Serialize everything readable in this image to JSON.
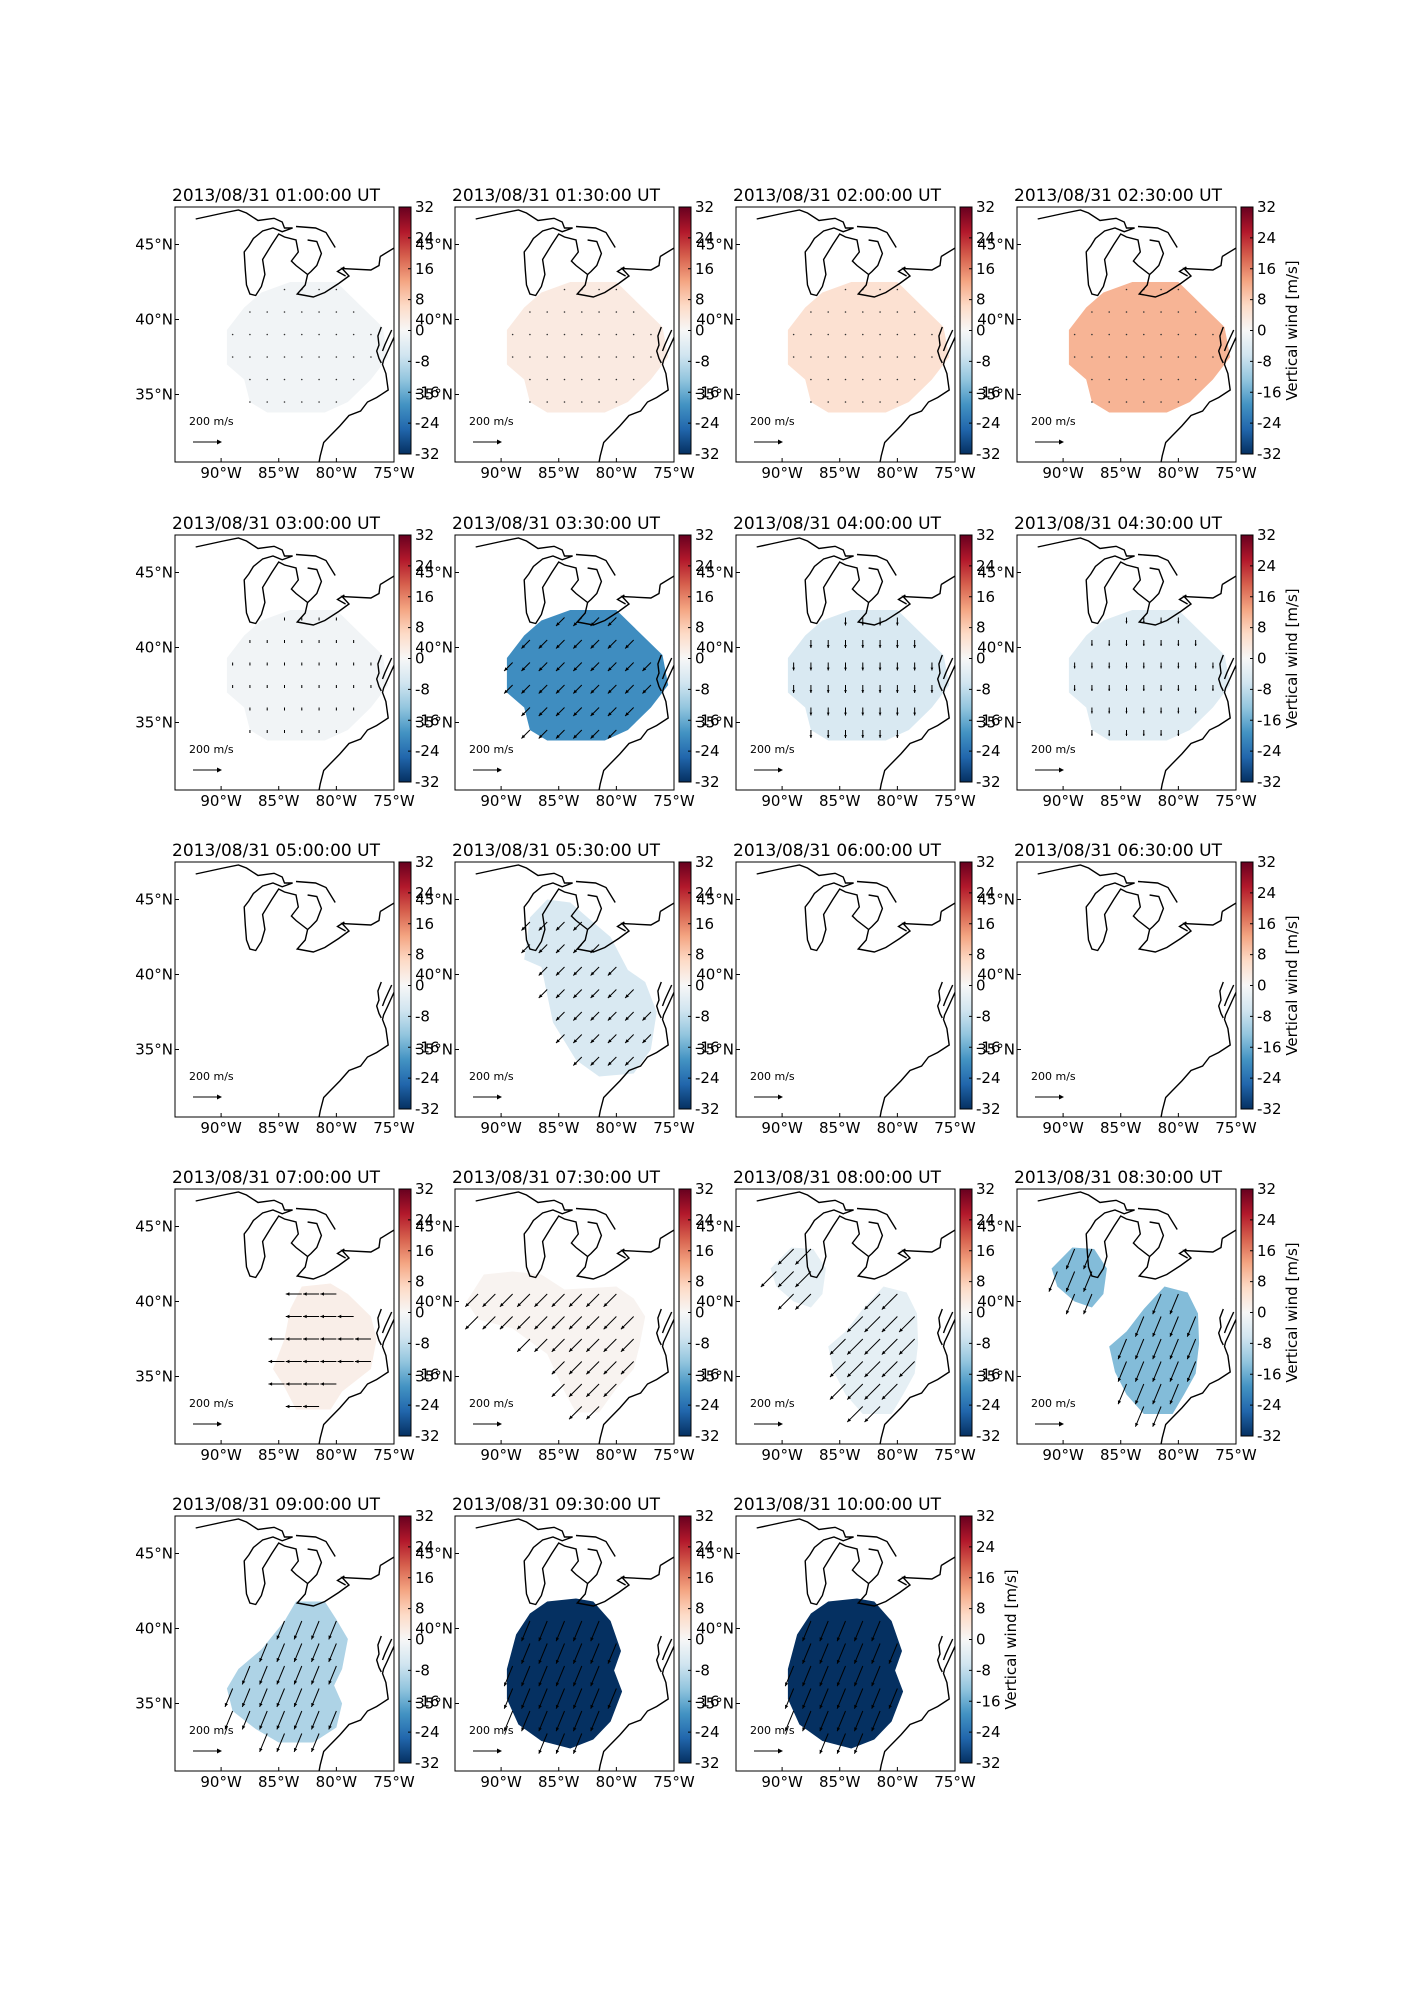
{
  "figure": {
    "longitude_tick_labels": [
      "90°W",
      "85°W",
      "80°W",
      "75°W"
    ],
    "latitude_tick_labels": [
      "45°N",
      "40°N",
      "35°N"
    ],
    "colorbar_tick_labels": [
      "32",
      "24",
      "16",
      "8",
      "0",
      "-8",
      "-16",
      "-24",
      "-32"
    ],
    "colorbar_label": "Vertical wind [m/s]",
    "reference_arrow_label": "200 m/s",
    "colors": {
      "colormap": [
        "#053061",
        "#2166ac",
        "#4393c3",
        "#92c5de",
        "#d1e5f0",
        "#f7f7f7",
        "#fddbc7",
        "#f4a582",
        "#d6604d",
        "#b2182b",
        "#67001f"
      ],
      "coastline": "#000000",
      "text": "#000000"
    }
  },
  "chart_data": [
    {
      "type": "heatmap",
      "title": "2013/08/31 01:00:00 UT",
      "vertical_wind_ms": -1,
      "coverage": "central",
      "arrow_direction": "none",
      "arrow_speed": 0
    },
    {
      "type": "heatmap",
      "title": "2013/08/31 01:30:00 UT",
      "vertical_wind_ms": 3,
      "coverage": "central",
      "arrow_direction": "none",
      "arrow_speed": 0
    },
    {
      "type": "heatmap",
      "title": "2013/08/31 02:00:00 UT",
      "vertical_wind_ms": 5,
      "coverage": "central",
      "arrow_direction": "none",
      "arrow_speed": 0
    },
    {
      "type": "heatmap",
      "title": "2013/08/31 02:30:00 UT",
      "vertical_wind_ms": 11,
      "coverage": "central",
      "arrow_direction": "none",
      "arrow_speed": 0
    },
    {
      "type": "heatmap",
      "title": "2013/08/31 03:00:00 UT",
      "vertical_wind_ms": -1,
      "coverage": "central",
      "arrow_direction": "S",
      "arrow_speed": 15
    },
    {
      "type": "heatmap",
      "title": "2013/08/31 03:30:00 UT",
      "vertical_wind_ms": -20,
      "coverage": "central",
      "arrow_direction": "SW",
      "arrow_speed": 60
    },
    {
      "type": "heatmap",
      "title": "2013/08/31 04:00:00 UT",
      "vertical_wind_ms": -5,
      "coverage": "central",
      "arrow_direction": "S",
      "arrow_speed": 40
    },
    {
      "type": "heatmap",
      "title": "2013/08/31 04:30:00 UT",
      "vertical_wind_ms": -4,
      "coverage": "central",
      "arrow_direction": "S",
      "arrow_speed": 30
    },
    {
      "type": "heatmap",
      "title": "2013/08/31 05:00:00 UT",
      "vertical_wind_ms": 0,
      "coverage": "none",
      "arrow_direction": "none",
      "arrow_speed": 0
    },
    {
      "type": "heatmap",
      "title": "2013/08/31 05:30:00 UT",
      "vertical_wind_ms": -5,
      "coverage": "northwest",
      "arrow_direction": "SW",
      "arrow_speed": 60
    },
    {
      "type": "heatmap",
      "title": "2013/08/31 06:00:00 UT",
      "vertical_wind_ms": 0,
      "coverage": "none",
      "arrow_direction": "none",
      "arrow_speed": 0
    },
    {
      "type": "heatmap",
      "title": "2013/08/31 06:30:00 UT",
      "vertical_wind_ms": 0,
      "coverage": "none",
      "arrow_direction": "none",
      "arrow_speed": 0
    },
    {
      "type": "heatmap",
      "title": "2013/08/31 07:00:00 UT",
      "vertical_wind_ms": 2,
      "coverage": "east",
      "arrow_direction": "W",
      "arrow_speed": 80
    },
    {
      "type": "heatmap",
      "title": "2013/08/31 07:30:00 UT",
      "vertical_wind_ms": 1,
      "coverage": "wide",
      "arrow_direction": "SW",
      "arrow_speed": 90
    },
    {
      "type": "heatmap",
      "title": "2013/08/31 08:00:00 UT",
      "vertical_wind_ms": -3,
      "coverage": "split",
      "arrow_direction": "SW",
      "arrow_speed": 110
    },
    {
      "type": "heatmap",
      "title": "2013/08/31 08:30:00 UT",
      "vertical_wind_ms": -14,
      "coverage": "split",
      "arrow_direction": "SSW",
      "arrow_speed": 110
    },
    {
      "type": "heatmap",
      "title": "2013/08/31 09:00:00 UT",
      "vertical_wind_ms": -10,
      "coverage": "southwest",
      "arrow_direction": "SSW",
      "arrow_speed": 100
    },
    {
      "type": "heatmap",
      "title": "2013/08/31 09:30:00 UT",
      "vertical_wind_ms": -32,
      "coverage": "large",
      "arrow_direction": "SSW",
      "arrow_speed": 110
    },
    {
      "type": "heatmap",
      "title": "2013/08/31 10:00:00 UT",
      "vertical_wind_ms": -32,
      "coverage": "large",
      "arrow_direction": "SSW",
      "arrow_speed": 110
    }
  ]
}
